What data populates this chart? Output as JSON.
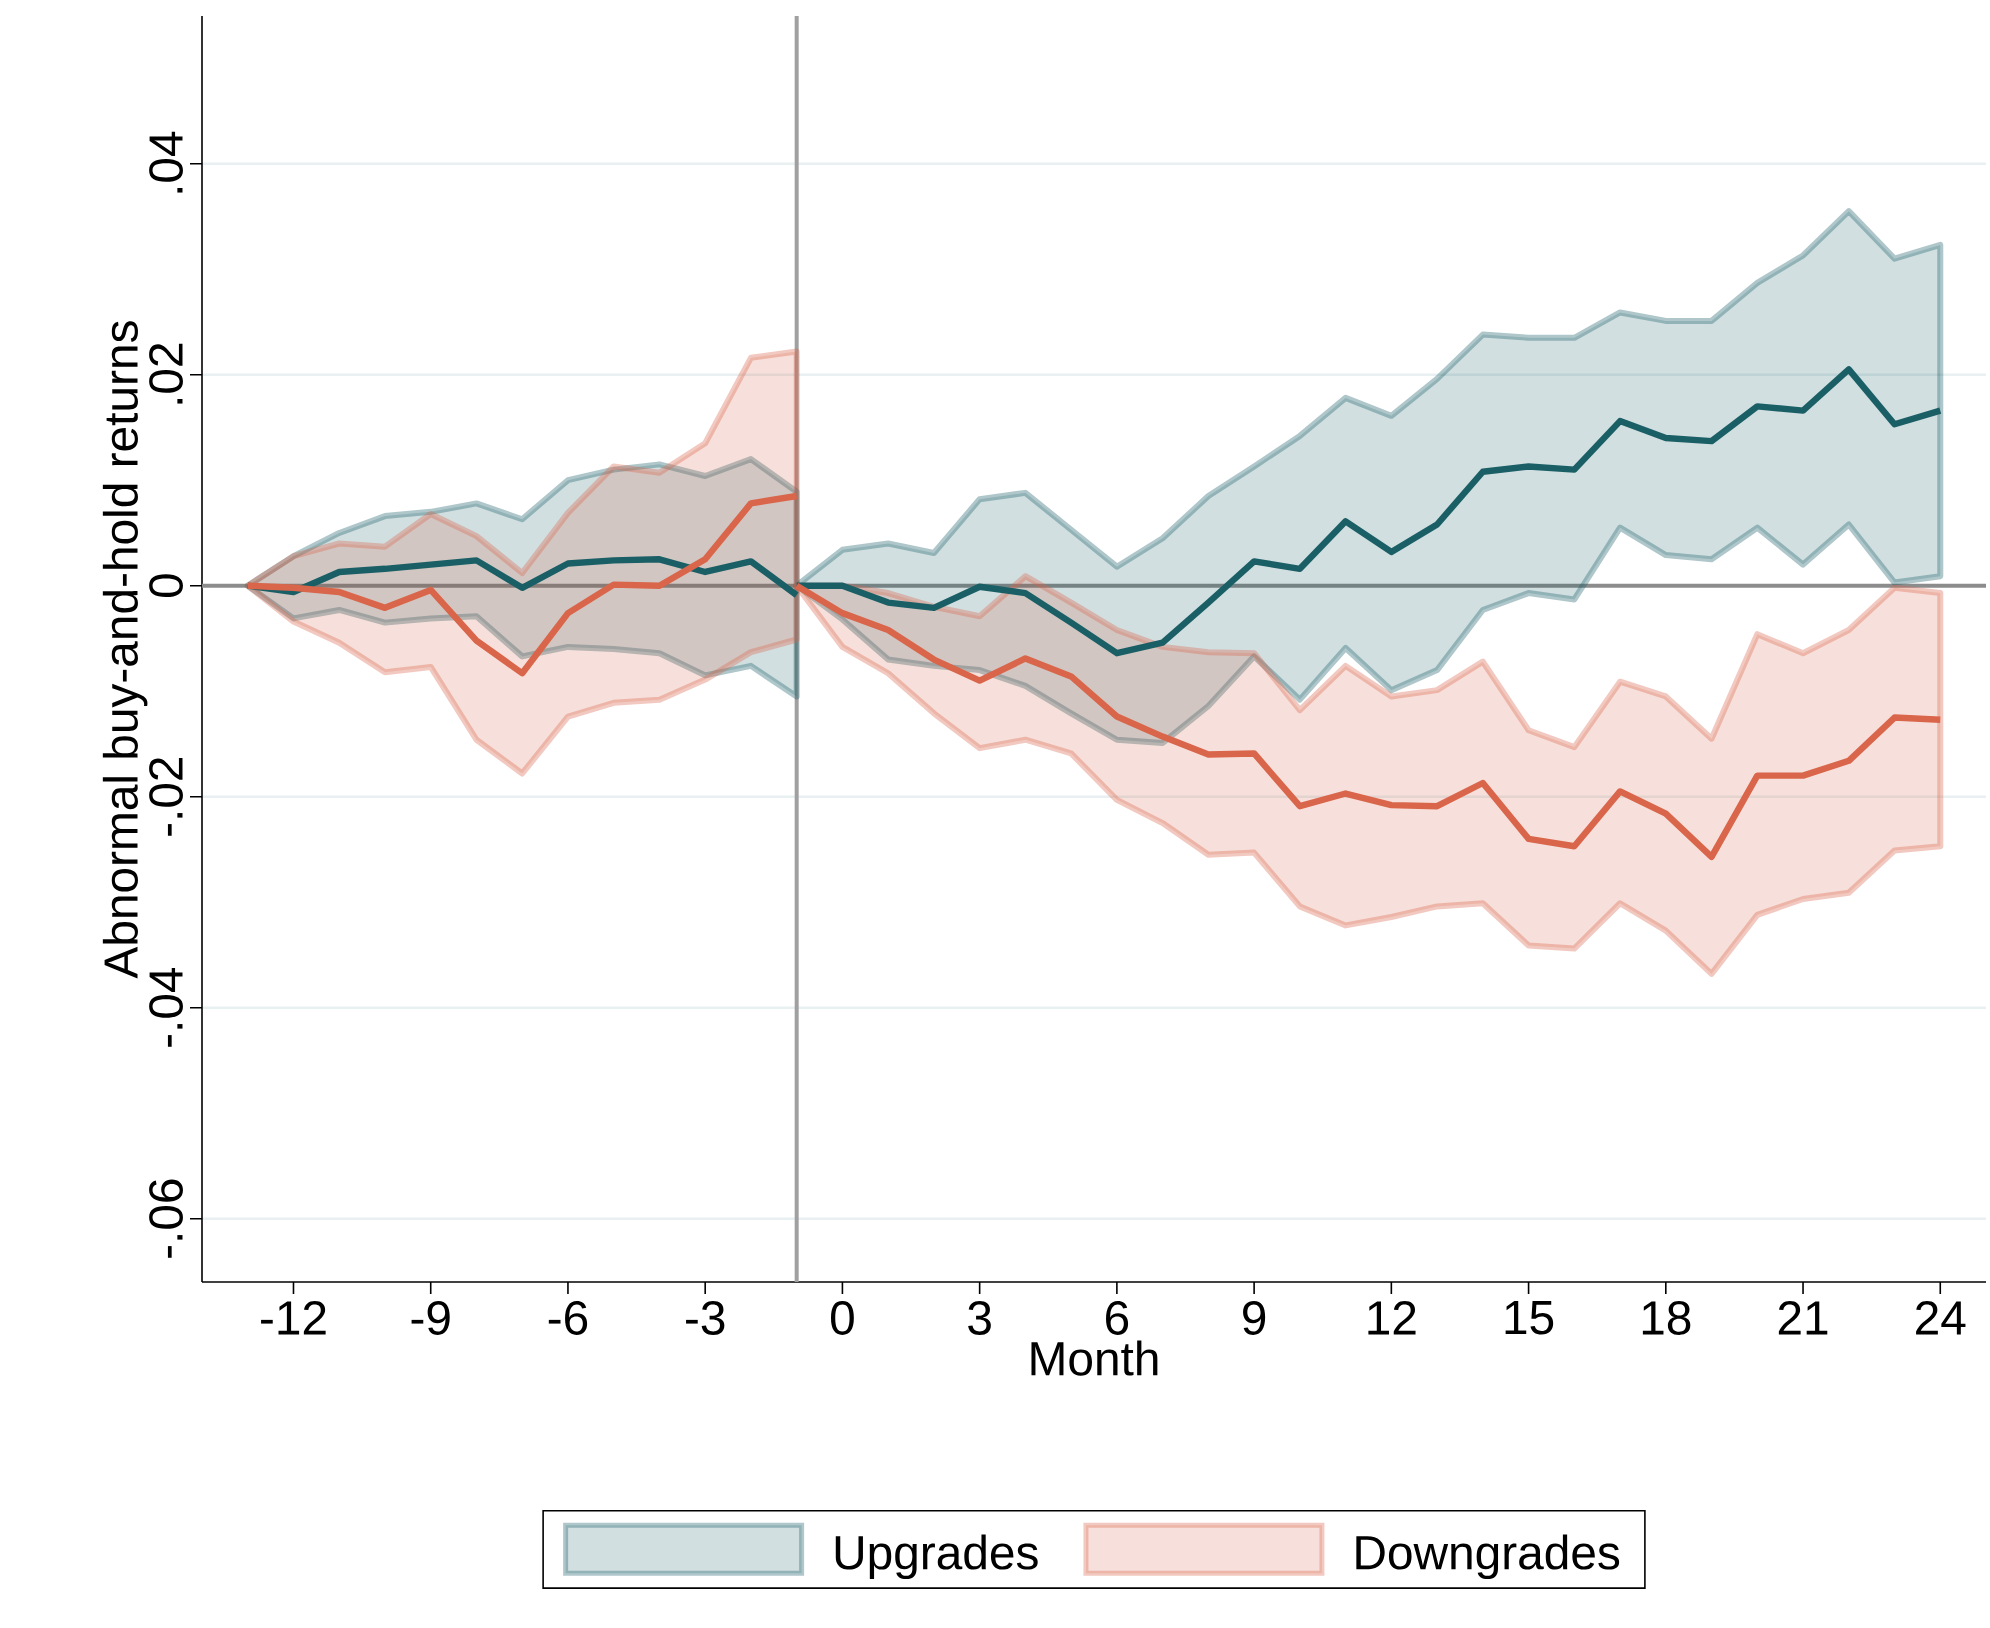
{
  "chart_data": {
    "type": "line",
    "xlabel": "Month",
    "ylabel": "Abnormal buy-and-hold returns",
    "xlim": [
      -14,
      25
    ],
    "xticks": [
      -12,
      -9,
      -6,
      -3,
      0,
      3,
      6,
      9,
      12,
      15,
      18,
      21,
      24
    ],
    "ylim": [
      -0.066,
      0.054
    ],
    "yticks": [
      {
        "value": -0.06,
        "label": "-.06"
      },
      {
        "value": -0.04,
        "label": "-.04"
      },
      {
        "value": -0.02,
        "label": "-.02"
      },
      {
        "value": 0,
        "label": "0"
      },
      {
        "value": 0.02,
        "label": ".02"
      },
      {
        "value": 0.04,
        "label": ".04"
      }
    ],
    "grid": "y",
    "legend": "bottom",
    "ref_lines": [
      {
        "axis": "y",
        "value": 0,
        "color": "#8c8c8c"
      },
      {
        "axis": "x",
        "value": -1,
        "color": "#a0a0a0"
      }
    ],
    "series": [
      {
        "name": "Upgrades",
        "color": "#1b5f66",
        "x": [
          -13,
          -12,
          -11,
          -10,
          -9,
          -8,
          -7,
          -6,
          -5,
          -4,
          -3,
          -2,
          -1
        ],
        "values": [
          0,
          -0.0006,
          0.0013,
          0.0016,
          0.002,
          0.0024,
          -0.0002,
          0.0021,
          0.0024,
          0.0025,
          0.0013,
          0.0023,
          -0.0009
        ],
        "upper": [
          0,
          0.0028,
          0.005,
          0.0066,
          0.007,
          0.0078,
          0.0063,
          0.01,
          0.011,
          0.0115,
          0.0104,
          0.012,
          0.0089
        ],
        "lower": [
          0,
          -0.0031,
          -0.0023,
          -0.0035,
          -0.0031,
          -0.0029,
          -0.0067,
          -0.0058,
          -0.006,
          -0.0064,
          -0.0085,
          -0.0076,
          -0.0105
        ]
      },
      {
        "color": "#1b5f66",
        "x": [
          -1,
          0,
          1,
          2,
          3,
          4,
          5,
          6,
          7,
          8,
          9,
          10,
          11,
          12,
          13,
          14,
          15,
          16,
          17,
          18,
          19,
          20,
          21,
          22,
          23,
          24
        ],
        "values": [
          0,
          0,
          -0.0016,
          -0.0021,
          -0.0001,
          -0.0007,
          -0.0035,
          -0.0064,
          -0.0054,
          -0.0016,
          0.0023,
          0.0016,
          0.0061,
          0.0032,
          0.0058,
          0.0108,
          0.0113,
          0.011,
          0.0156,
          0.014,
          0.0137,
          0.017,
          0.0166,
          0.0205,
          0.0153,
          0.0166
        ],
        "upper": [
          0,
          0.0034,
          0.004,
          0.0031,
          0.0082,
          0.0088,
          0.0053,
          0.0018,
          0.0045,
          0.0085,
          0.0113,
          0.0142,
          0.0178,
          0.0161,
          0.0196,
          0.0238,
          0.0235,
          0.0235,
          0.0259,
          0.0251,
          0.0251,
          0.0287,
          0.0313,
          0.0355,
          0.031,
          0.0323
        ],
        "lower": [
          0,
          -0.0032,
          -0.007,
          -0.0076,
          -0.008,
          -0.0095,
          -0.0121,
          -0.0146,
          -0.0149,
          -0.0114,
          -0.0067,
          -0.0108,
          -0.0059,
          -0.0099,
          -0.008,
          -0.0023,
          -0.0007,
          -0.0013,
          0.0055,
          0.0029,
          0.0025,
          0.0055,
          0.002,
          0.0058,
          0.0003,
          0.0009
        ]
      },
      {
        "name": "Downgrades",
        "color": "#d9654a",
        "x": [
          -13,
          -12,
          -11,
          -10,
          -9,
          -8,
          -7,
          -6,
          -5,
          -4,
          -3,
          -2,
          -1
        ],
        "values": [
          0,
          -0.0002,
          -0.0006,
          -0.0021,
          -0.0004,
          -0.0052,
          -0.0083,
          -0.0026,
          0.0001,
          0,
          0.0025,
          0.0078,
          0.0085
        ],
        "upper": [
          0,
          0.0028,
          0.004,
          0.0037,
          0.0068,
          0.0047,
          0.0012,
          0.0069,
          0.0113,
          0.0107,
          0.0135,
          0.0216,
          0.0222
        ],
        "lower": [
          0,
          -0.0034,
          -0.0054,
          -0.0082,
          -0.0077,
          -0.0146,
          -0.0178,
          -0.0124,
          -0.0111,
          -0.0108,
          -0.0089,
          -0.0063,
          -0.0051
        ]
      },
      {
        "color": "#d9654a",
        "x": [
          -1,
          0,
          1,
          2,
          3,
          4,
          5,
          6,
          7,
          8,
          9,
          10,
          11,
          12,
          13,
          14,
          15,
          16,
          17,
          18,
          19,
          20,
          21,
          22,
          23,
          24
        ],
        "values": [
          0,
          -0.0026,
          -0.0042,
          -0.007,
          -0.009,
          -0.0069,
          -0.0086,
          -0.0124,
          -0.0143,
          -0.016,
          -0.0159,
          -0.0209,
          -0.0197,
          -0.0208,
          -0.0209,
          -0.0187,
          -0.024,
          -0.0247,
          -0.0195,
          -0.0216,
          -0.0257,
          -0.018,
          -0.018,
          -0.0166,
          -0.0125,
          -0.0127
        ],
        "upper": [
          0,
          0,
          -0.0007,
          -0.002,
          -0.0029,
          0.0009,
          -0.0016,
          -0.0042,
          -0.0058,
          -0.0063,
          -0.0064,
          -0.0118,
          -0.0076,
          -0.0105,
          -0.0099,
          -0.0072,
          -0.0137,
          -0.0153,
          -0.0091,
          -0.0105,
          -0.0145,
          -0.0046,
          -0.0064,
          -0.0042,
          -0.0002,
          -0.0007
        ],
        "lower": [
          0,
          -0.0058,
          -0.0083,
          -0.0121,
          -0.0154,
          -0.0146,
          -0.0159,
          -0.0203,
          -0.0225,
          -0.0255,
          -0.0253,
          -0.0304,
          -0.0322,
          -0.0314,
          -0.0304,
          -0.0301,
          -0.0341,
          -0.0344,
          -0.0301,
          -0.0327,
          -0.0368,
          -0.0312,
          -0.0297,
          -0.0291,
          -0.0251,
          -0.0247
        ]
      }
    ]
  }
}
